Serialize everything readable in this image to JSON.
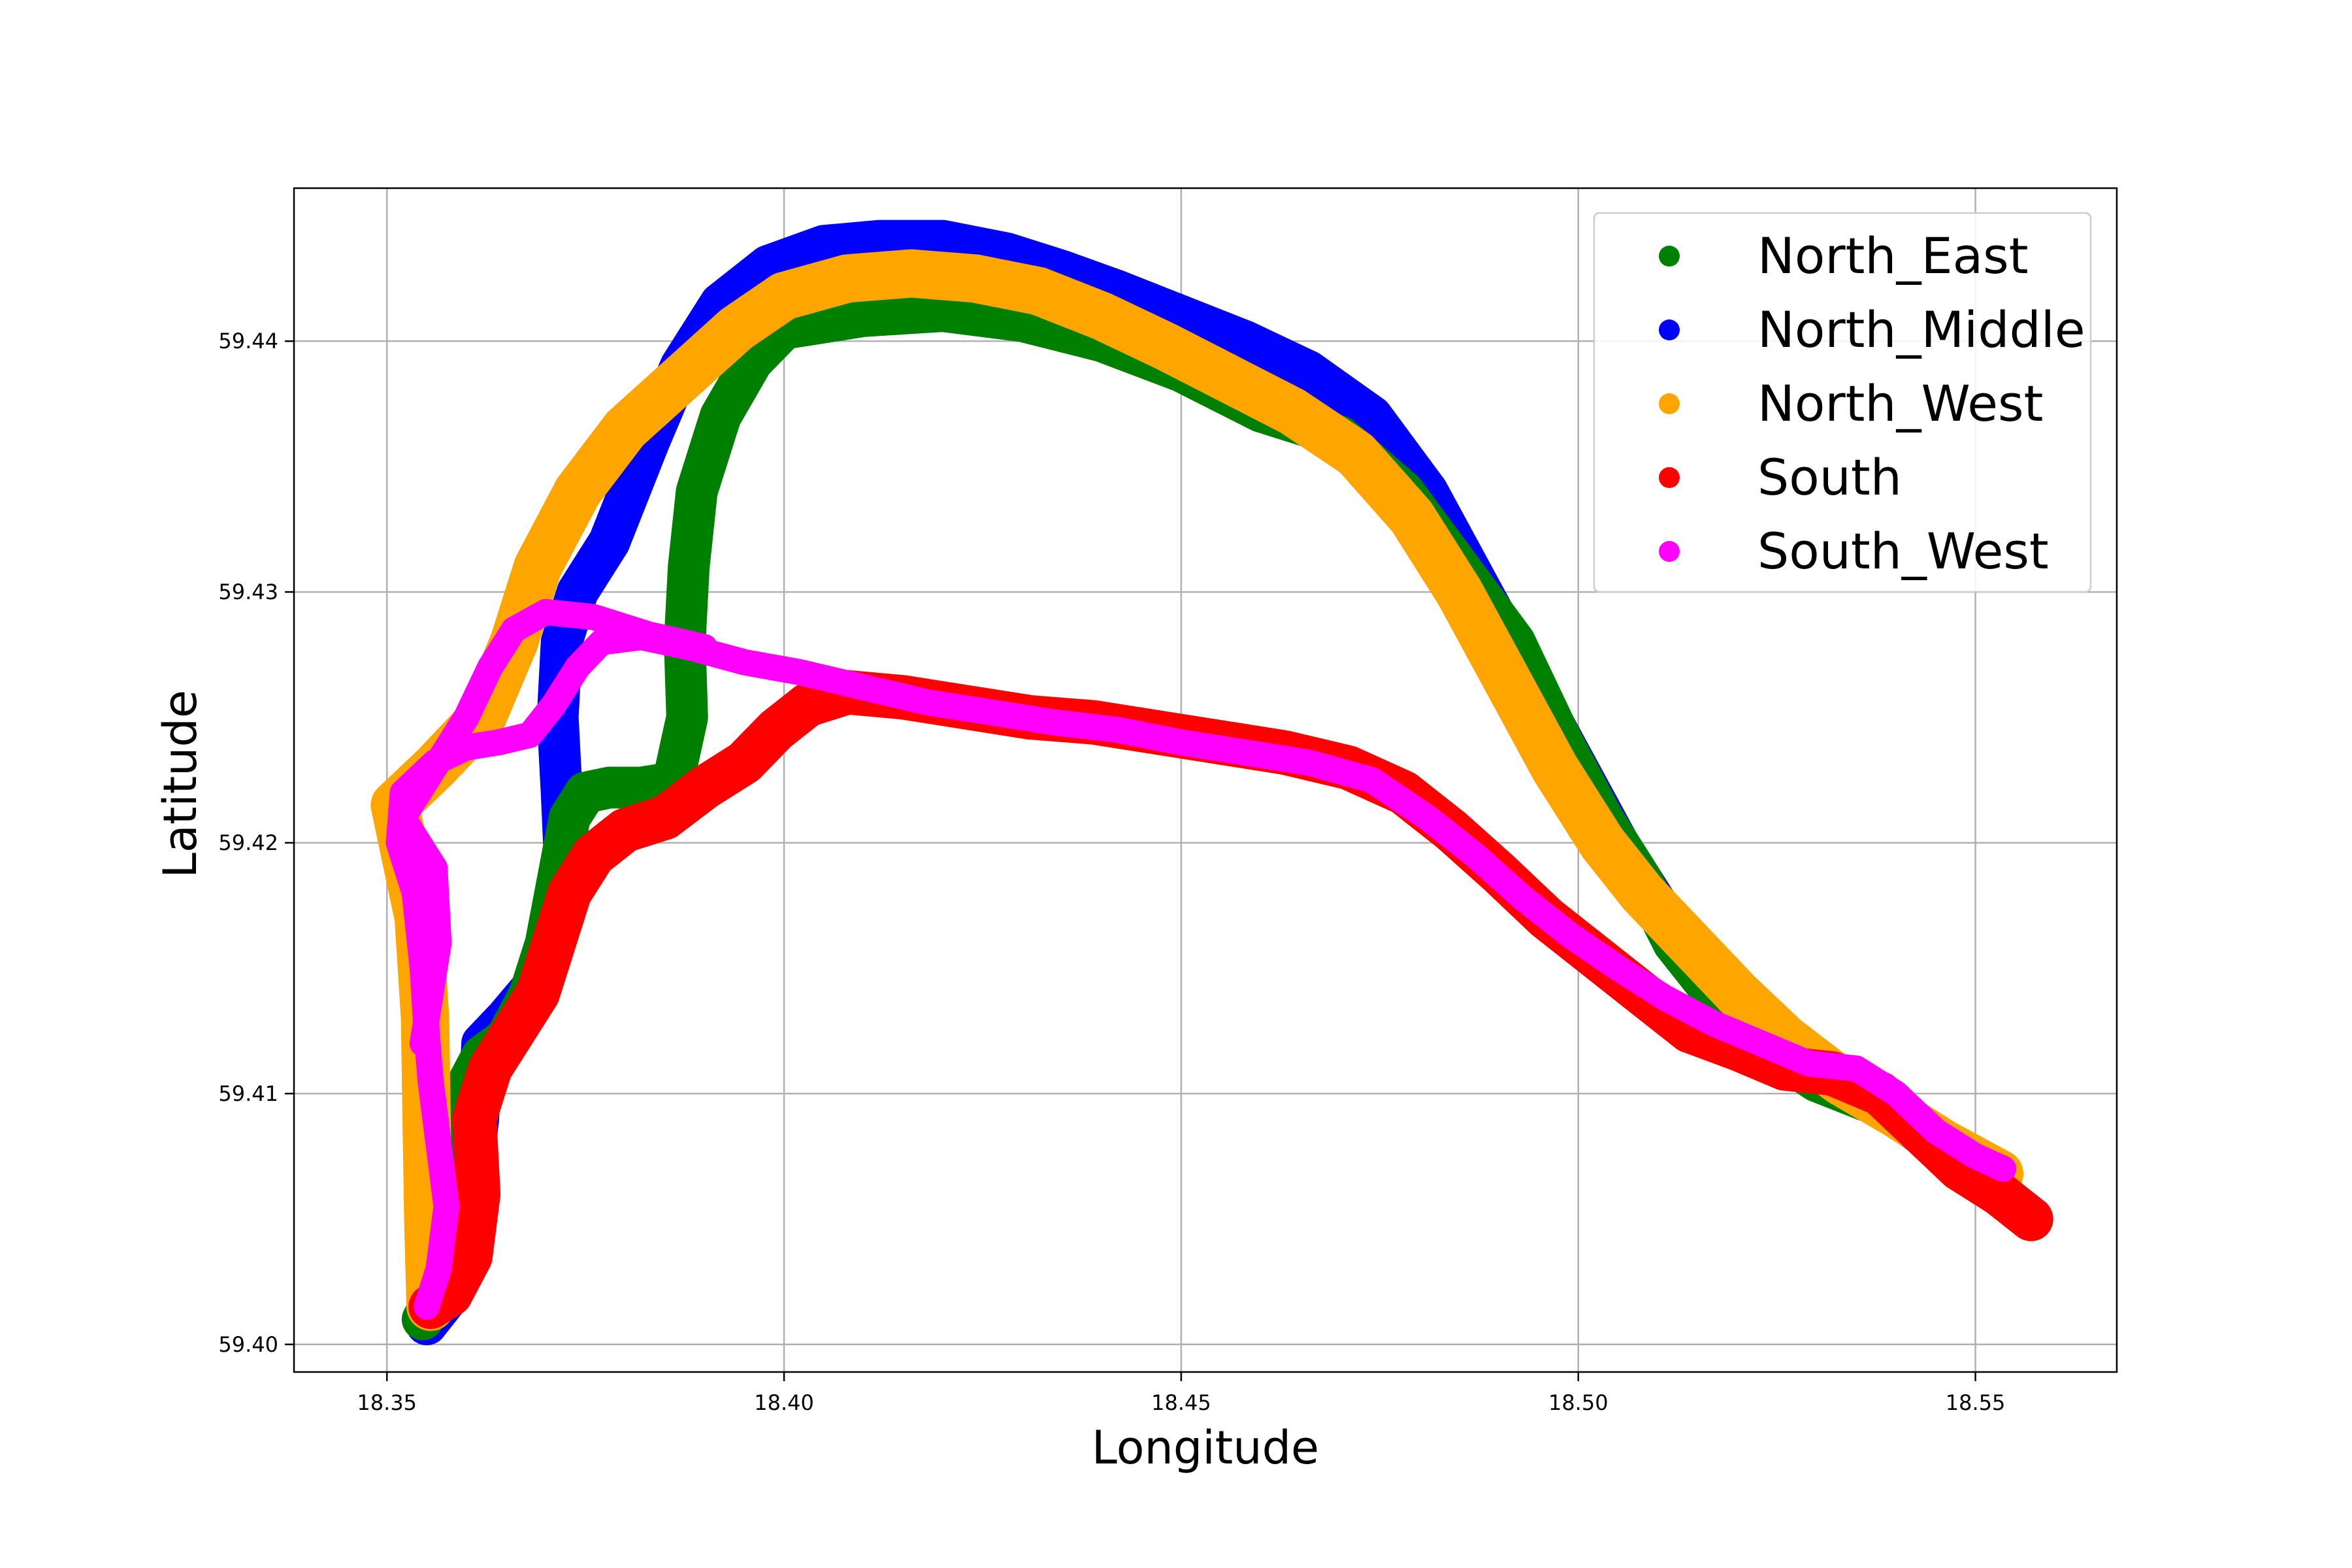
{
  "chart_data": {
    "type": "scatter",
    "title": "",
    "xlabel": "Longitude",
    "ylabel": "Latitude",
    "xlim": [
      18.3383,
      18.5678
    ],
    "ylim": [
      59.3989,
      59.4461
    ],
    "xticks": [
      18.35,
      18.4,
      18.45,
      18.5,
      18.55
    ],
    "xtick_labels": [
      "18.35",
      "18.40",
      "18.45",
      "18.50",
      "18.55"
    ],
    "yticks": [
      59.4,
      59.41,
      59.42,
      59.43,
      59.44
    ],
    "ytick_labels": [
      "59.40",
      "59.41",
      "59.42",
      "59.43",
      "59.44"
    ],
    "grid": true,
    "legend_position": "top-right",
    "series": [
      {
        "name": "North_East",
        "color": "#008000",
        "points": [
          [
            18.3545,
            59.401
          ],
          [
            18.3562,
            59.402
          ],
          [
            18.3575,
            59.404
          ],
          [
            18.3582,
            59.407
          ],
          [
            18.3595,
            59.41
          ],
          [
            18.362,
            59.4115
          ],
          [
            18.365,
            59.4122
          ],
          [
            18.368,
            59.414
          ],
          [
            18.37,
            59.416
          ],
          [
            18.3715,
            59.4185
          ],
          [
            18.373,
            59.421
          ],
          [
            18.375,
            59.422
          ],
          [
            18.378,
            59.4222
          ],
          [
            18.382,
            59.4222
          ],
          [
            18.386,
            59.4224
          ],
          [
            18.3878,
            59.425
          ],
          [
            18.3875,
            59.428
          ],
          [
            18.388,
            59.431
          ],
          [
            18.389,
            59.434
          ],
          [
            18.392,
            59.437
          ],
          [
            18.396,
            59.4392
          ],
          [
            18.4,
            59.4405
          ],
          [
            18.41,
            59.441
          ],
          [
            18.42,
            59.4412
          ],
          [
            18.43,
            59.4408
          ],
          [
            18.44,
            59.44
          ],
          [
            18.45,
            59.4388
          ],
          [
            18.46,
            59.4372
          ],
          [
            18.47,
            59.4362
          ],
          [
            18.478,
            59.434
          ],
          [
            18.485,
            59.431
          ],
          [
            18.492,
            59.428
          ],
          [
            18.498,
            59.424
          ],
          [
            18.503,
            59.421
          ],
          [
            18.508,
            59.4185
          ],
          [
            18.512,
            59.416
          ],
          [
            18.517,
            59.414
          ],
          [
            18.523,
            59.412
          ],
          [
            18.53,
            59.4105
          ],
          [
            18.538,
            59.4095
          ],
          [
            18.545,
            59.408
          ],
          [
            18.551,
            59.407
          ],
          [
            18.553,
            59.4065
          ]
        ]
      },
      {
        "name": "North_Middle",
        "color": "#0000ff",
        "points": [
          [
            18.355,
            59.4008
          ],
          [
            18.358,
            59.402
          ],
          [
            18.36,
            59.405
          ],
          [
            18.3615,
            59.409
          ],
          [
            18.362,
            59.412
          ],
          [
            18.365,
            59.413
          ],
          [
            18.369,
            59.4145
          ],
          [
            18.371,
            59.416
          ],
          [
            18.3725,
            59.4185
          ],
          [
            18.372,
            59.422
          ],
          [
            18.3715,
            59.425
          ],
          [
            18.372,
            59.428
          ],
          [
            18.374,
            59.43
          ],
          [
            18.378,
            59.432
          ],
          [
            18.383,
            59.436
          ],
          [
            18.387,
            59.439
          ],
          [
            18.392,
            59.4415
          ],
          [
            18.398,
            59.443
          ],
          [
            18.405,
            59.4438
          ],
          [
            18.412,
            59.444
          ],
          [
            18.42,
            59.444
          ],
          [
            18.428,
            59.4435
          ],
          [
            18.435,
            59.4428
          ],
          [
            18.442,
            59.442
          ],
          [
            18.45,
            59.441
          ],
          [
            18.458,
            59.44
          ],
          [
            18.466,
            59.4388
          ],
          [
            18.474,
            59.437
          ],
          [
            18.481,
            59.434
          ],
          [
            18.487,
            59.4305
          ],
          [
            18.493,
            59.427
          ],
          [
            18.499,
            59.4235
          ],
          [
            18.505,
            59.42
          ],
          [
            18.511,
            59.417
          ],
          [
            18.517,
            59.415
          ],
          [
            18.523,
            59.413
          ],
          [
            18.529,
            59.4112
          ],
          [
            18.535,
            59.41
          ],
          [
            18.542,
            59.4088
          ],
          [
            18.548,
            59.4075
          ],
          [
            18.552,
            59.4063
          ]
        ]
      },
      {
        "name": "North_West",
        "color": "#ffa500",
        "points": [
          [
            18.3555,
            59.4015
          ],
          [
            18.3552,
            59.405
          ],
          [
            18.355,
            59.409
          ],
          [
            18.3548,
            59.413
          ],
          [
            18.354,
            59.417
          ],
          [
            18.352,
            59.42
          ],
          [
            18.351,
            59.4215
          ],
          [
            18.356,
            59.423
          ],
          [
            18.362,
            59.425
          ],
          [
            18.366,
            59.428
          ],
          [
            18.369,
            59.431
          ],
          [
            18.374,
            59.434
          ],
          [
            18.38,
            59.4365
          ],
          [
            18.387,
            59.4385
          ],
          [
            18.394,
            59.4405
          ],
          [
            18.4,
            59.4418
          ],
          [
            18.408,
            59.4425
          ],
          [
            18.416,
            59.4427
          ],
          [
            18.424,
            59.4425
          ],
          [
            18.432,
            59.442
          ],
          [
            18.44,
            59.441
          ],
          [
            18.448,
            59.4398
          ],
          [
            18.456,
            59.4385
          ],
          [
            18.464,
            59.4372
          ],
          [
            18.472,
            59.4355
          ],
          [
            18.479,
            59.433
          ],
          [
            18.485,
            59.43
          ],
          [
            18.491,
            59.4265
          ],
          [
            18.497,
            59.423
          ],
          [
            18.503,
            59.42
          ],
          [
            18.508,
            59.418
          ],
          [
            18.514,
            59.416
          ],
          [
            18.52,
            59.414
          ],
          [
            18.526,
            59.4122
          ],
          [
            18.533,
            59.4105
          ],
          [
            18.54,
            59.4092
          ],
          [
            18.546,
            59.408
          ],
          [
            18.553,
            59.4068
          ]
        ]
      },
      {
        "name": "South",
        "color": "#ff0000",
        "points": [
          [
            18.3555,
            59.4015
          ],
          [
            18.358,
            59.402
          ],
          [
            18.3605,
            59.4035
          ],
          [
            18.3615,
            59.406
          ],
          [
            18.361,
            59.409
          ],
          [
            18.363,
            59.411
          ],
          [
            18.366,
            59.4125
          ],
          [
            18.369,
            59.414
          ],
          [
            18.371,
            59.416
          ],
          [
            18.373,
            59.418
          ],
          [
            18.376,
            59.4195
          ],
          [
            18.38,
            59.4205
          ],
          [
            18.385,
            59.421
          ],
          [
            18.39,
            59.4222
          ],
          [
            18.395,
            59.4232
          ],
          [
            18.399,
            59.4245
          ],
          [
            18.403,
            59.4255
          ],
          [
            18.408,
            59.426
          ],
          [
            18.415,
            59.4258
          ],
          [
            18.423,
            59.4254
          ],
          [
            18.431,
            59.425
          ],
          [
            18.439,
            59.4248
          ],
          [
            18.447,
            59.4244
          ],
          [
            18.455,
            59.424
          ],
          [
            18.463,
            59.4236
          ],
          [
            18.471,
            59.423
          ],
          [
            18.478,
            59.422
          ],
          [
            18.484,
            59.4205
          ],
          [
            18.49,
            59.4188
          ],
          [
            18.496,
            59.417
          ],
          [
            18.502,
            59.4155
          ],
          [
            18.508,
            59.414
          ],
          [
            18.514,
            59.4125
          ],
          [
            18.52,
            59.4118
          ],
          [
            18.526,
            59.411
          ],
          [
            18.532,
            59.4108
          ],
          [
            18.538,
            59.41
          ],
          [
            18.543,
            59.4085
          ],
          [
            18.548,
            59.407
          ],
          [
            18.553,
            59.406
          ],
          [
            18.557,
            59.405
          ]
        ]
      },
      {
        "name": "South_West",
        "color": "#ff00ff",
        "points": [
          [
            18.355,
            59.4015
          ],
          [
            18.3565,
            59.403
          ],
          [
            18.3575,
            59.4055
          ],
          [
            18.3565,
            59.408
          ],
          [
            18.3555,
            59.4105
          ],
          [
            18.355,
            59.4125
          ],
          [
            18.3545,
            59.415
          ],
          [
            18.3535,
            59.418
          ],
          [
            18.3515,
            59.42
          ],
          [
            18.352,
            59.422
          ],
          [
            18.356,
            59.4232
          ],
          [
            18.36,
            59.4238
          ],
          [
            18.364,
            59.424
          ],
          [
            18.368,
            59.4243
          ],
          [
            18.371,
            59.4255
          ],
          [
            18.374,
            59.427
          ],
          [
            18.377,
            59.428
          ],
          [
            18.382,
            59.4282
          ],
          [
            18.388,
            59.4278
          ],
          [
            18.395,
            59.4272
          ],
          [
            18.402,
            59.4268
          ],
          [
            18.41,
            59.4262
          ],
          [
            18.418,
            59.4256
          ],
          [
            18.426,
            59.4252
          ],
          [
            18.434,
            59.4248
          ],
          [
            18.442,
            59.4245
          ],
          [
            18.45,
            59.424
          ],
          [
            18.458,
            59.4236
          ],
          [
            18.466,
            59.4232
          ],
          [
            18.474,
            59.4225
          ],
          [
            18.481,
            59.421
          ],
          [
            18.487,
            59.4195
          ],
          [
            18.493,
            59.4178
          ],
          [
            18.499,
            59.4163
          ],
          [
            18.505,
            59.415
          ],
          [
            18.511,
            59.4138
          ],
          [
            18.517,
            59.4128
          ],
          [
            18.523,
            59.412
          ],
          [
            18.529,
            59.4112
          ],
          [
            18.535,
            59.411
          ],
          [
            18.54,
            59.41
          ],
          [
            18.545,
            59.4085
          ],
          [
            18.55,
            59.4075
          ],
          [
            18.5535,
            59.407
          ]
        ]
      }
    ],
    "extra_paths": [
      {
        "series": "South_West",
        "color": "#ff00ff",
        "points": [
          [
            18.3545,
            59.412
          ],
          [
            18.3565,
            59.416
          ],
          [
            18.356,
            59.419
          ],
          [
            18.352,
            59.421
          ],
          [
            18.356,
            59.423
          ],
          [
            18.36,
            59.425
          ],
          [
            18.363,
            59.427
          ],
          [
            18.366,
            59.4285
          ],
          [
            18.37,
            59.4292
          ],
          [
            18.376,
            59.429
          ],
          [
            18.383,
            59.4283
          ],
          [
            18.39,
            59.4278
          ]
        ]
      }
    ]
  }
}
